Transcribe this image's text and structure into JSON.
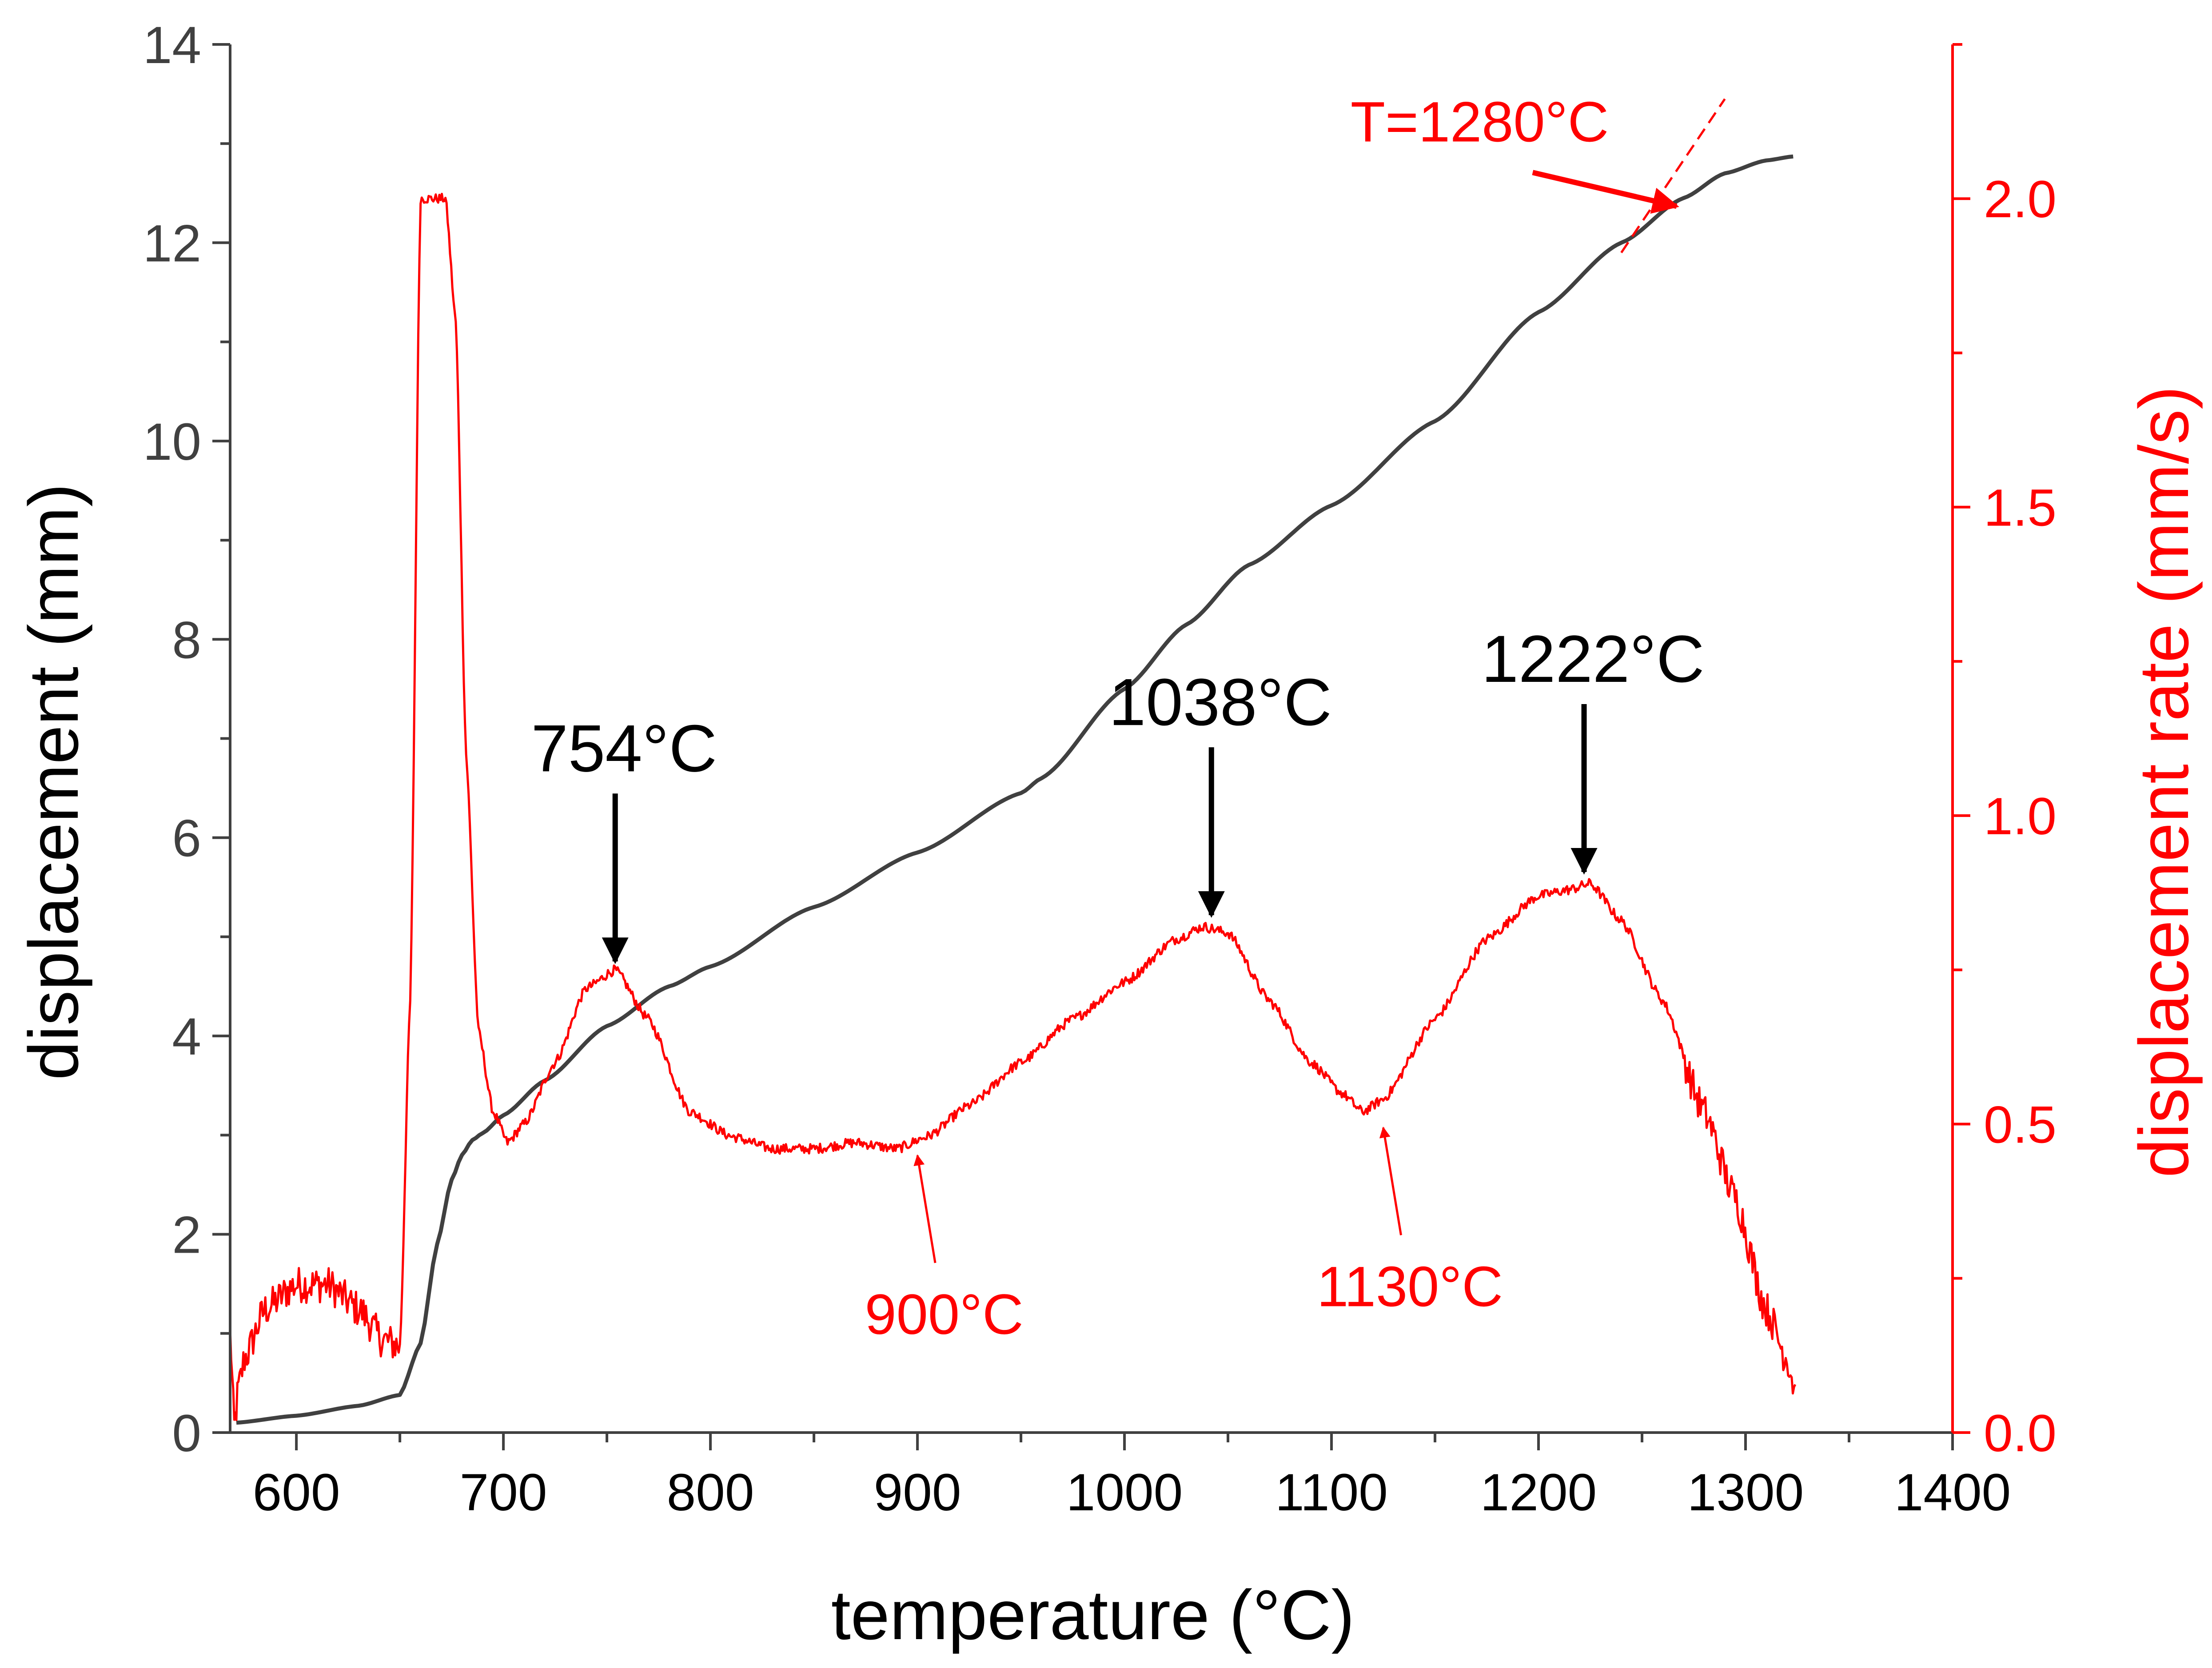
{
  "chart_data": {
    "type": "line",
    "title": "",
    "xlabel": "temperature (°C)",
    "ylabel_left": "displacement (mm)",
    "ylabel_right": "displacement rate (mm/s)",
    "xlim": [
      568,
      1400
    ],
    "ylim_left": [
      0,
      14
    ],
    "ylim_right": [
      0,
      2.25
    ],
    "x_ticks": [
      600,
      700,
      800,
      900,
      1000,
      1100,
      1200,
      1300,
      1400
    ],
    "x_tick_labels": [
      "600",
      "700",
      "800",
      "900",
      "1000",
      "1100",
      "1200",
      "1300",
      "1400"
    ],
    "y_left_ticks": [
      0,
      2,
      4,
      6,
      8,
      10,
      12,
      14
    ],
    "y_left_tick_labels": [
      "0",
      "2",
      "4",
      "6",
      "8",
      "10",
      "12",
      "14"
    ],
    "y_right_ticks": [
      0.0,
      0.5,
      1.0,
      1.5,
      2.0
    ],
    "y_right_tick_labels": [
      "0.0",
      "0.5",
      "1.0",
      "1.5",
      "2.0"
    ],
    "colors": {
      "displacement": "#404040",
      "rate": "#ff0000",
      "axis_left": "#404040",
      "axis_right": "#ff0000",
      "annotation_black": "#000000"
    },
    "series": [
      {
        "name": "displacement",
        "axis": "left",
        "x": [
          571,
          600,
          630,
          650,
          660,
          668,
          675,
          680,
          685,
          690,
          700,
          720,
          750,
          780,
          800,
          850,
          900,
          950,
          960,
          1000,
          1030,
          1060,
          1100,
          1150,
          1200,
          1240,
          1270,
          1290,
          1310,
          1323
        ],
        "y": [
          0.1,
          0.17,
          0.27,
          0.38,
          0.9,
          1.9,
          2.55,
          2.8,
          2.95,
          3.02,
          3.2,
          3.55,
          4.1,
          4.5,
          4.7,
          5.3,
          5.85,
          6.45,
          6.6,
          7.5,
          8.15,
          8.75,
          9.35,
          10.2,
          11.3,
          12.0,
          12.45,
          12.7,
          12.83,
          12.87
        ]
      },
      {
        "name": "displacement rate",
        "axis": "right",
        "x": [
          568,
          570,
          572,
          575,
          585,
          600,
          615,
          630,
          642,
          650,
          655,
          660,
          665,
          672,
          677,
          682,
          688,
          695,
          702,
          710,
          725,
          740,
          754,
          770,
          790,
          810,
          830,
          850,
          870,
          890,
          905,
          925,
          950,
          975,
          1000,
          1025,
          1038,
          1050,
          1070,
          1090,
          1105,
          1115,
          1125,
          1150,
          1175,
          1200,
          1215,
          1225,
          1240,
          1260,
          1280,
          1295,
          1310,
          1320,
          1324
        ],
        "y": [
          0.16,
          0.01,
          0.07,
          0.12,
          0.2,
          0.24,
          0.24,
          0.2,
          0.15,
          0.14,
          0.7,
          2.0,
          2.0,
          2.0,
          1.8,
          1.1,
          0.65,
          0.52,
          0.47,
          0.5,
          0.6,
          0.72,
          0.75,
          0.67,
          0.52,
          0.48,
          0.46,
          0.46,
          0.47,
          0.46,
          0.48,
          0.53,
          0.6,
          0.67,
          0.73,
          0.8,
          0.82,
          0.81,
          0.7,
          0.6,
          0.55,
          0.52,
          0.54,
          0.67,
          0.8,
          0.87,
          0.88,
          0.89,
          0.83,
          0.7,
          0.52,
          0.38,
          0.2,
          0.12,
          0.07
        ]
      }
    ],
    "annotations": [
      {
        "text": "754°C",
        "x": 754,
        "y": 0.755,
        "axis": "right",
        "color": "black",
        "arrow": "down"
      },
      {
        "text": "1038°C",
        "x": 1042,
        "y": 0.83,
        "axis": "right",
        "color": "black",
        "arrow": "down"
      },
      {
        "text": "1222°C",
        "x": 1222,
        "y": 0.9,
        "axis": "right",
        "color": "black",
        "arrow": "down"
      },
      {
        "text": "900°C",
        "x": 900,
        "y": 0.455,
        "axis": "right",
        "color": "red",
        "arrow": "up"
      },
      {
        "text": "1130°C",
        "x": 1125,
        "y": 0.5,
        "axis": "right",
        "color": "red",
        "arrow": "up"
      },
      {
        "text": "T=1280°C",
        "x": 1268,
        "y": 12.35,
        "axis": "left",
        "color": "red",
        "arrow": "right"
      }
    ],
    "tangent_line": {
      "x": [
        1240,
        1290
      ],
      "y": [
        11.9,
        13.45
      ],
      "axis": "left",
      "style": "dashed",
      "color": "red"
    },
    "grid": false,
    "legend": "none"
  }
}
